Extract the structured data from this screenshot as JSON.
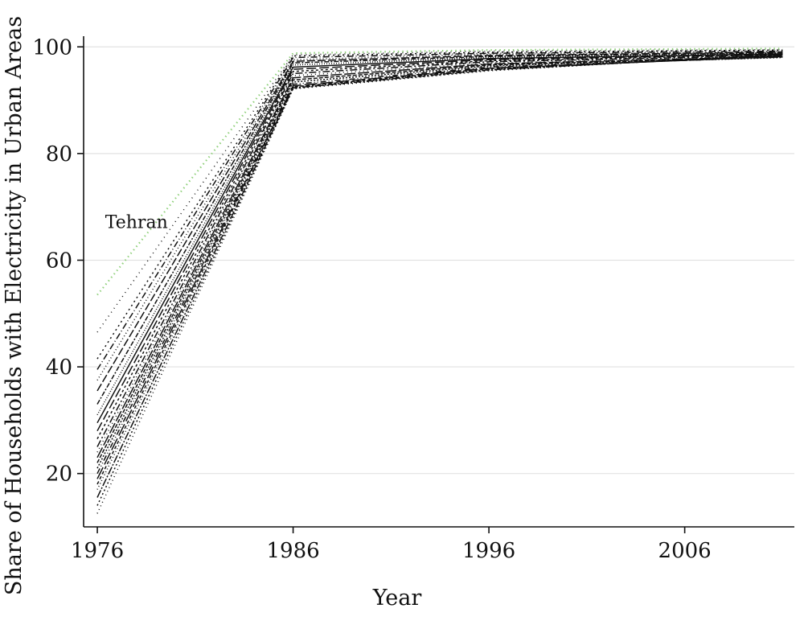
{
  "chart_data": {
    "type": "line",
    "title": "",
    "xlabel": "Year",
    "ylabel": "Share of Households with Electricity in Urban Areas",
    "xlim": [
      1975.3,
      2011.6
    ],
    "ylim": [
      10,
      102
    ],
    "x_ticks": [
      "1976",
      "1986",
      "1996",
      "2006"
    ],
    "y_ticks": [
      "20",
      "40",
      "60",
      "80",
      "100"
    ],
    "grid": "horizontal",
    "legend": "none",
    "annotations": [
      {
        "text": "Tehran",
        "x": 1976.4,
        "y": 66
      }
    ],
    "x": [
      1976,
      1986,
      1996,
      2011
    ],
    "series": [
      {
        "values": [
          53.5,
          98.8,
          99.4,
          99.7
        ],
        "color": "#8fd07a",
        "dash": "1.5 4",
        "highlight": true
      },
      {
        "values": [
          46.5,
          98.5,
          99.2,
          99.5
        ],
        "color": "#111111",
        "dash": "1 5"
      },
      {
        "values": [
          41.5,
          98.3,
          99.0,
          99.4
        ],
        "color": "#111111",
        "dash": "2 4"
      },
      {
        "values": [
          39.5,
          98.0,
          98.8,
          99.2
        ],
        "color": "#111111",
        "dash": "8 3 1 3"
      },
      {
        "values": [
          37.5,
          97.6,
          98.6,
          99.1
        ],
        "color": "#111111",
        "dash": "1 3"
      },
      {
        "values": [
          35.5,
          97.3,
          98.4,
          99.0
        ],
        "color": "#111111",
        "dash": "10 3"
      },
      {
        "values": [
          33.0,
          97.0,
          98.2,
          98.9
        ],
        "color": "#111111",
        "dash": "6 2 2 2"
      },
      {
        "values": [
          31.0,
          96.6,
          98.0,
          98.8
        ],
        "color": "#111111",
        "dash": "1 2"
      },
      {
        "values": [
          29.5,
          96.2,
          97.8,
          98.7
        ],
        "color": "#111111",
        "dash": ""
      },
      {
        "values": [
          28.0,
          95.8,
          97.6,
          98.6
        ],
        "color": "#111111",
        "dash": "12 4"
      },
      {
        "values": [
          26.5,
          95.4,
          97.4,
          98.5
        ],
        "color": "#111111",
        "dash": "3 3"
      },
      {
        "values": [
          25.0,
          95.0,
          97.2,
          98.4
        ],
        "color": "#111111",
        "dash": "9 3 2 3"
      },
      {
        "values": [
          24.0,
          94.6,
          97.0,
          98.3
        ],
        "color": "#111111",
        "dash": "1 4"
      },
      {
        "values": [
          23.0,
          94.2,
          96.8,
          98.2
        ],
        "color": "#111111",
        "dash": "14 3"
      },
      {
        "values": [
          22.0,
          93.8,
          96.6,
          98.1
        ],
        "color": "#111111",
        "dash": "5 2"
      },
      {
        "values": [
          21.0,
          93.4,
          96.4,
          98.0
        ],
        "color": "#111111",
        "dash": "2 2"
      },
      {
        "values": [
          20.0,
          93.0,
          96.2,
          98.1
        ],
        "color": "#111111",
        "dash": "7 3 1 3 1 3"
      },
      {
        "values": [
          19.0,
          92.7,
          96.0,
          98.2
        ],
        "color": "#111111",
        "dash": "16 4"
      },
      {
        "values": [
          18.0,
          92.5,
          95.9,
          98.3
        ],
        "color": "#111111",
        "dash": "4 3"
      },
      {
        "values": [
          17.0,
          92.4,
          95.8,
          98.4
        ],
        "color": "#111111",
        "dash": "1 3"
      },
      {
        "values": [
          15.5,
          92.3,
          95.7,
          98.5
        ],
        "color": "#111111",
        "dash": "10 2 2 2"
      },
      {
        "values": [
          14.0,
          92.2,
          95.6,
          98.6
        ],
        "color": "#111111",
        "dash": "2 3"
      },
      {
        "values": [
          12.5,
          92.1,
          95.5,
          98.7
        ],
        "color": "#111111",
        "dash": "1 4"
      }
    ]
  }
}
